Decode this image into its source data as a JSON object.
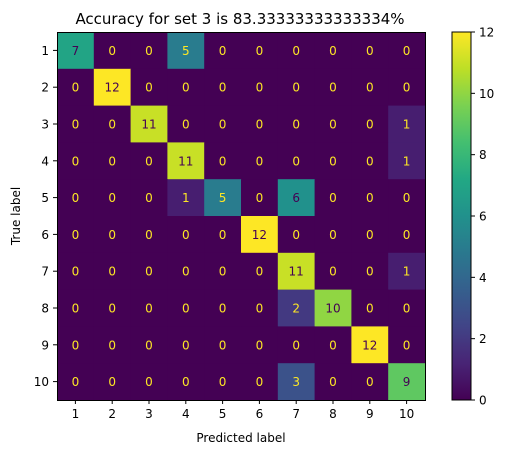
{
  "chart_data": {
    "type": "heatmap",
    "title": "Accuracy for set 3 is 83.33333333333334%",
    "xlabel": "Predicted label",
    "ylabel": "True label",
    "x_categories": [
      "1",
      "2",
      "3",
      "4",
      "5",
      "6",
      "7",
      "8",
      "9",
      "10"
    ],
    "y_categories": [
      "1",
      "2",
      "3",
      "4",
      "5",
      "6",
      "7",
      "8",
      "9",
      "10"
    ],
    "matrix": [
      [
        7,
        0,
        0,
        5,
        0,
        0,
        0,
        0,
        0,
        0
      ],
      [
        0,
        12,
        0,
        0,
        0,
        0,
        0,
        0,
        0,
        0
      ],
      [
        0,
        0,
        11,
        0,
        0,
        0,
        0,
        0,
        0,
        1
      ],
      [
        0,
        0,
        0,
        11,
        0,
        0,
        0,
        0,
        0,
        1
      ],
      [
        0,
        0,
        0,
        1,
        5,
        0,
        6,
        0,
        0,
        0
      ],
      [
        0,
        0,
        0,
        0,
        0,
        12,
        0,
        0,
        0,
        0
      ],
      [
        0,
        0,
        0,
        0,
        0,
        0,
        11,
        0,
        0,
        1
      ],
      [
        0,
        0,
        0,
        0,
        0,
        0,
        2,
        10,
        0,
        0
      ],
      [
        0,
        0,
        0,
        0,
        0,
        0,
        0,
        0,
        12,
        0
      ],
      [
        0,
        0,
        0,
        0,
        0,
        0,
        3,
        0,
        0,
        9
      ]
    ],
    "colormap": "viridis",
    "value_range": [
      0,
      12
    ],
    "colorbar_ticks": [
      "0",
      "2",
      "4",
      "6",
      "8",
      "10",
      "12"
    ],
    "grid": false
  }
}
